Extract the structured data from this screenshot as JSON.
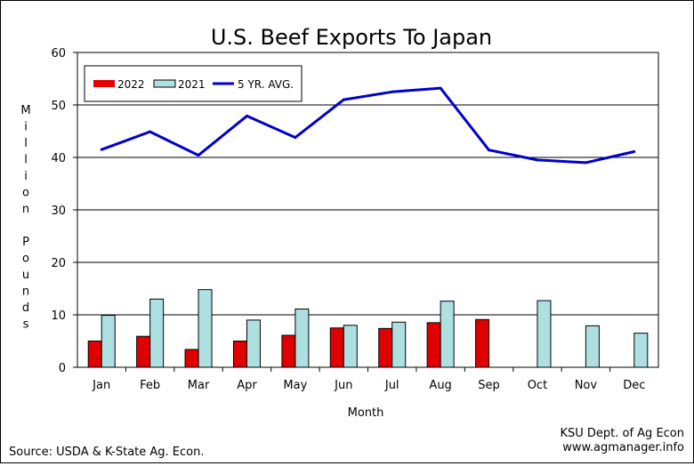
{
  "chart_data": {
    "type": "bar",
    "title": "U.S. Beef Exports To Japan",
    "xlabel": "Month",
    "ylabel": "Million Pounds",
    "ylim": [
      0,
      60
    ],
    "yticks": [
      0,
      10,
      20,
      30,
      40,
      50,
      60
    ],
    "grid": true,
    "legend_position": "top-left",
    "categories": [
      "Jan",
      "Feb",
      "Mar",
      "Apr",
      "May",
      "Jun",
      "Jul",
      "Aug",
      "Sep",
      "Oct",
      "Nov",
      "Dec"
    ],
    "series": [
      {
        "name": "2022",
        "type": "bar",
        "color": "#e00000",
        "values": [
          5.0,
          5.9,
          3.4,
          5.0,
          6.1,
          7.5,
          7.4,
          8.5,
          9.1,
          null,
          null,
          null
        ]
      },
      {
        "name": "2021",
        "type": "bar",
        "color": "#aee0e2",
        "values": [
          9.9,
          13.0,
          14.8,
          9.0,
          11.1,
          8.0,
          8.6,
          12.6,
          null,
          12.7,
          7.9,
          6.5
        ]
      },
      {
        "name": "5 YR. AVG.",
        "type": "line",
        "color": "#0000cc",
        "values": [
          41.5,
          44.9,
          40.4,
          47.9,
          43.8,
          51.0,
          52.5,
          53.2,
          41.4,
          39.5,
          39.0,
          41.1
        ]
      }
    ]
  },
  "credits": {
    "source": "Source:  USDA & K-State Ag. Econ.",
    "org_line1": "KSU Dept. of Ag Econ",
    "org_line2": "www.agmanager.info"
  }
}
